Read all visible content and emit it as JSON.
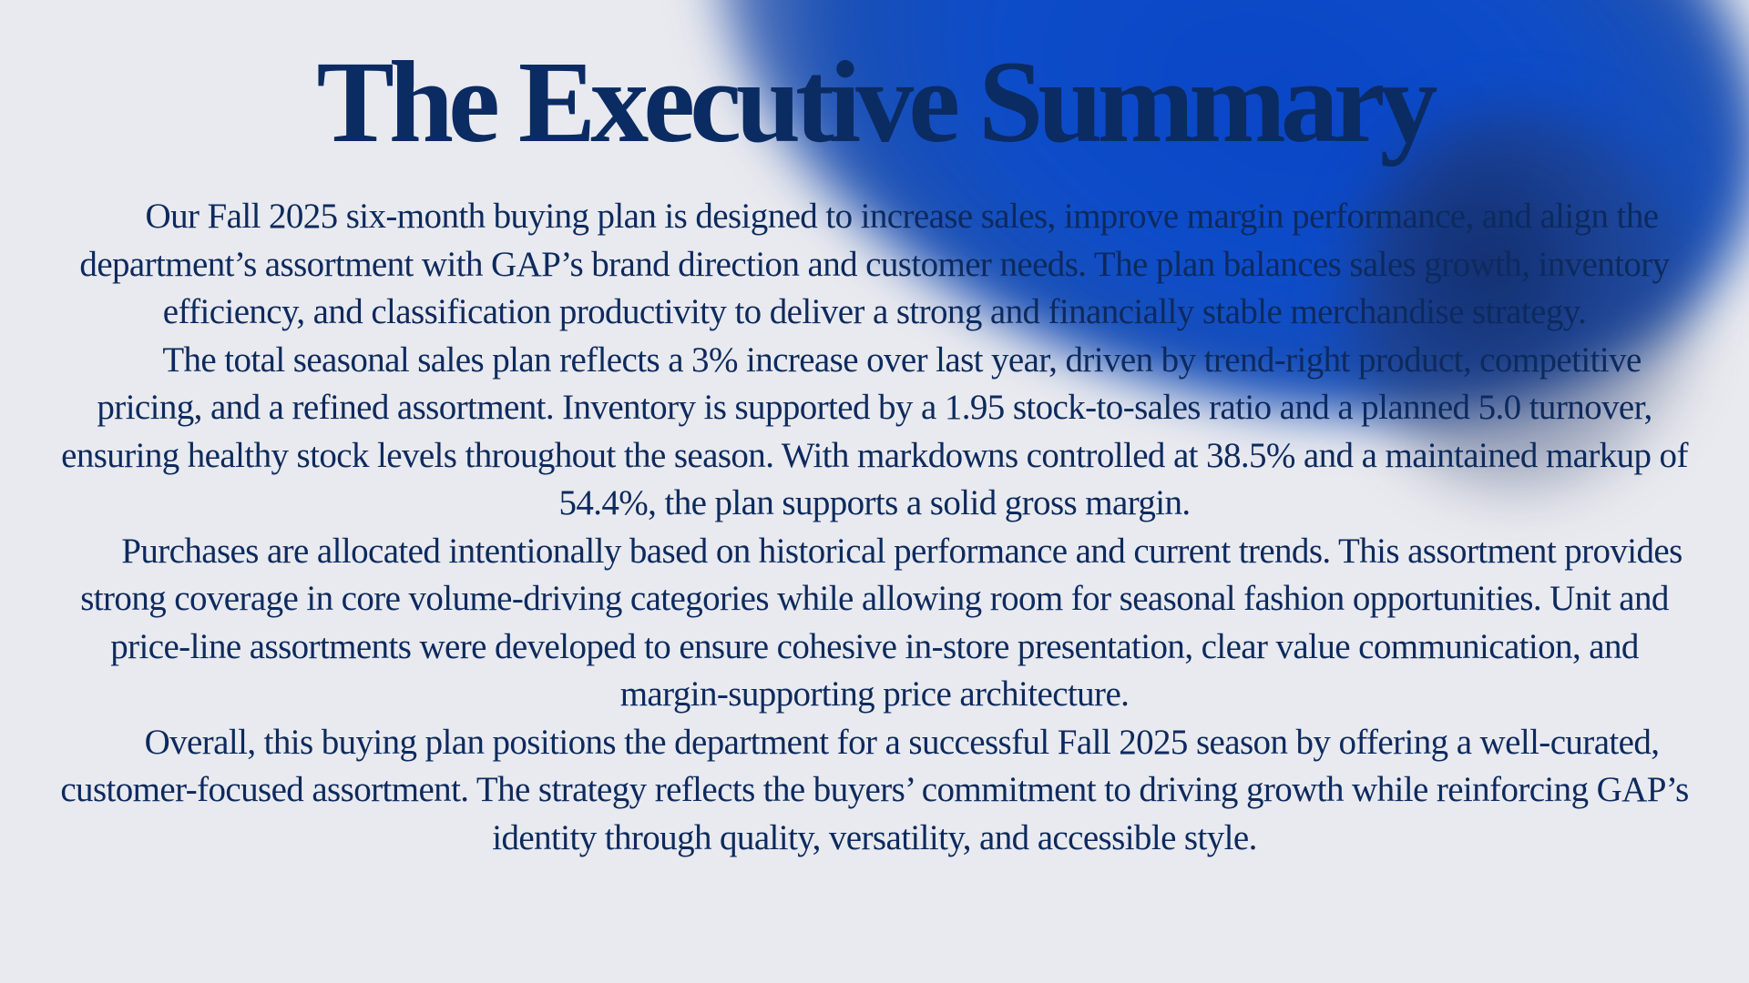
{
  "slide": {
    "title": "The Executive Summary",
    "paragraphs": [
      "Our Fall 2025 six-month buying plan is designed to increase sales, improve margin performance, and align the department’s assortment with GAP’s brand direction and customer needs. The plan balances sales growth, inventory efficiency, and classification productivity to deliver a strong and financially stable merchandise strategy.",
      "The total seasonal sales plan  reflects a 3% increase over last year, driven by trend-right product, competitive pricing, and a refined assortment. Inventory is supported by a 1.95 stock-to-sales ratio and a planned 5.0 turnover, ensuring healthy stock levels throughout the season. With markdowns controlled at 38.5% and a maintained markup of 54.4%, the plan supports a solid gross margin.",
      "Purchases are allocated intentionally based on historical performance and current trends. This assortment provides strong coverage in core volume-driving categories while allowing room for seasonal fashion opportunities. Unit and price-line assortments were developed to ensure cohesive in-store presentation, clear value communication, and margin-supporting price architecture.",
      "Overall, this buying plan positions the department for a successful Fall 2025 season by offering a well-curated, customer-focused assortment. The strategy reflects the buyers’ commitment to driving growth while reinforcing GAP’s identity through quality, versatility, and accessible style."
    ]
  },
  "colors": {
    "background": "#e9eaef",
    "accent_glow": "#0a46c6",
    "title_text": "#0b2b63",
    "body_text": "#0d2a5e"
  }
}
